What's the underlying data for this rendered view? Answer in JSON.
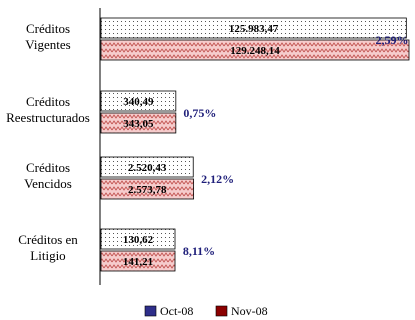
{
  "chart_data": {
    "type": "bar",
    "orientation": "horizontal",
    "categories": [
      [
        "Créditos",
        "Vigentes"
      ],
      [
        "Créditos",
        "Reestructurados"
      ],
      [
        "Créditos",
        "Vencidos"
      ],
      [
        "Créditos en",
        "Litigio"
      ]
    ],
    "series": [
      {
        "name": "Oct-08",
        "color": "#2e2e8a",
        "pattern": "dots",
        "values": [
          125983.47,
          340.49,
          2520.43,
          130.62
        ],
        "labels": [
          "125.983,47",
          "340,49",
          "2.520,43",
          "130,62"
        ]
      },
      {
        "name": "Nov-08",
        "color": "#8b0000",
        "pattern": "zigzag",
        "values": [
          129248.14,
          343.05,
          2573.78,
          141.21
        ],
        "labels": [
          "129.248,14",
          "343,05",
          "2.573,78",
          "141,21"
        ]
      }
    ],
    "changes": [
      "2,59%",
      "0,75%",
      "2,12%",
      "8,11%"
    ],
    "legend_position": "bottom",
    "grid": false
  }
}
